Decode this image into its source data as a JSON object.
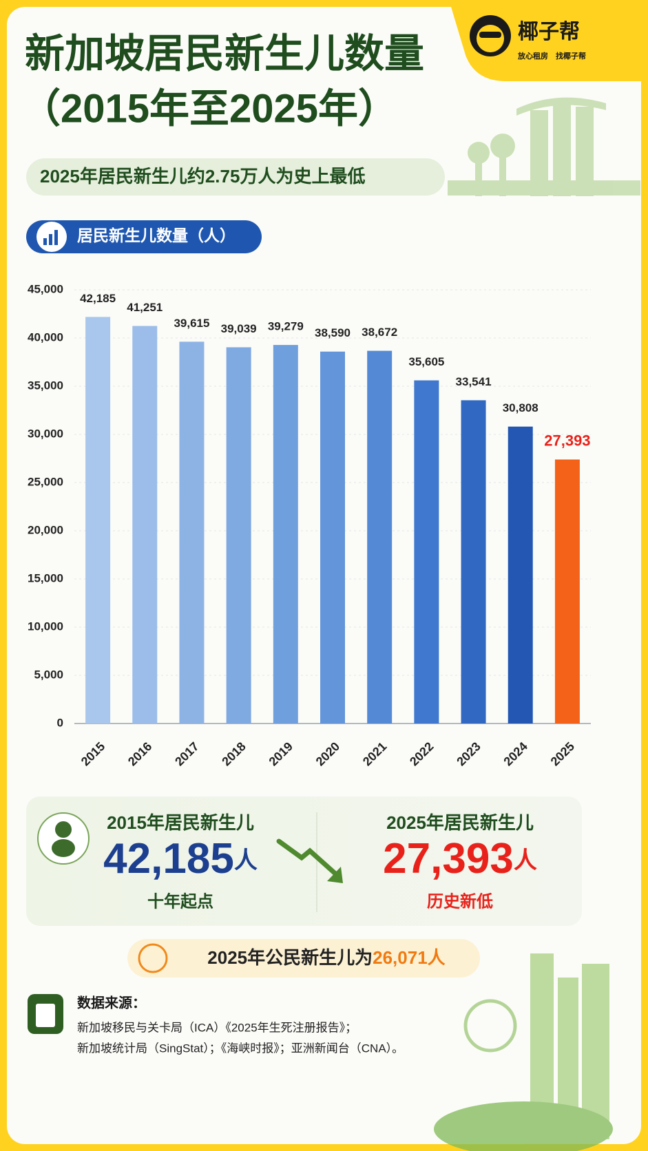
{
  "header": {
    "title_line1": "新加坡居民新生儿数量",
    "title_line2": "（2015年至2025年）",
    "subtitle": "2025年居民新生儿约2.75万人为史上最低",
    "brand": "椰子帮",
    "tagline": "放心租房　找椰子帮"
  },
  "chart_data": {
    "type": "bar",
    "label": "居民新生儿数量（人）",
    "categories": [
      "2015",
      "2016",
      "2017",
      "2018",
      "2019",
      "2020",
      "2021",
      "2022",
      "2023",
      "2024",
      "2025"
    ],
    "values": [
      42185,
      41251,
      39615,
      39039,
      39279,
      38590,
      38672,
      35605,
      33541,
      30808,
      27393
    ],
    "value_labels": [
      "42,185",
      "41,251",
      "39,615",
      "39,039",
      "39,279",
      "38,590",
      "38,672",
      "35,605",
      "33,541",
      "30,808",
      "27,393"
    ],
    "colors": [
      "#a9c7ec",
      "#9cbde9",
      "#8db3e5",
      "#7fa9e1",
      "#709fde",
      "#6395da",
      "#548ad5",
      "#3f78ce",
      "#3168c2",
      "#2457b3",
      "#f4621a"
    ],
    "value_label_colors": [
      "#222222",
      "#222222",
      "#222222",
      "#222222",
      "#222222",
      "#222222",
      "#222222",
      "#222222",
      "#222222",
      "#222222",
      "#e8221b"
    ],
    "ylim": [
      0,
      45000
    ],
    "yticks": [
      0,
      {
        "value": 5000,
        "label": "5,000"
      },
      {
        "value": 10000,
        "label": "10,000"
      },
      {
        "value": 15000,
        "label": "15,000"
      },
      {
        "value": 20000,
        "label": "20,000"
      },
      {
        "value": 25000,
        "label": "25,000"
      },
      {
        "value": 30000,
        "label": "30,000"
      },
      {
        "value": 35000,
        "label": "35,000"
      },
      {
        "value": 40000,
        "label": "40,000"
      },
      {
        "value": 45000,
        "label": "45,000"
      }
    ],
    "grid": true
  },
  "comparison": {
    "left": {
      "title": "2015年居民新生儿",
      "number": "42,185",
      "unit": "人",
      "caption": "十年起点"
    },
    "right": {
      "title": "2025年居民新生儿",
      "number": "27,393",
      "unit": "人",
      "caption": "历史新低"
    }
  },
  "citizen": {
    "text": "2025年公民新生儿为",
    "number": "26,071",
    "unit": "人"
  },
  "source": {
    "heading": "数据来源：",
    "line1": "新加坡移民与关卡局（ICA）《2025年生死注册报告》；",
    "line2": "新加坡统计局（SingStat）；《海峡时报》；亚洲新闻台（CNA）。"
  }
}
